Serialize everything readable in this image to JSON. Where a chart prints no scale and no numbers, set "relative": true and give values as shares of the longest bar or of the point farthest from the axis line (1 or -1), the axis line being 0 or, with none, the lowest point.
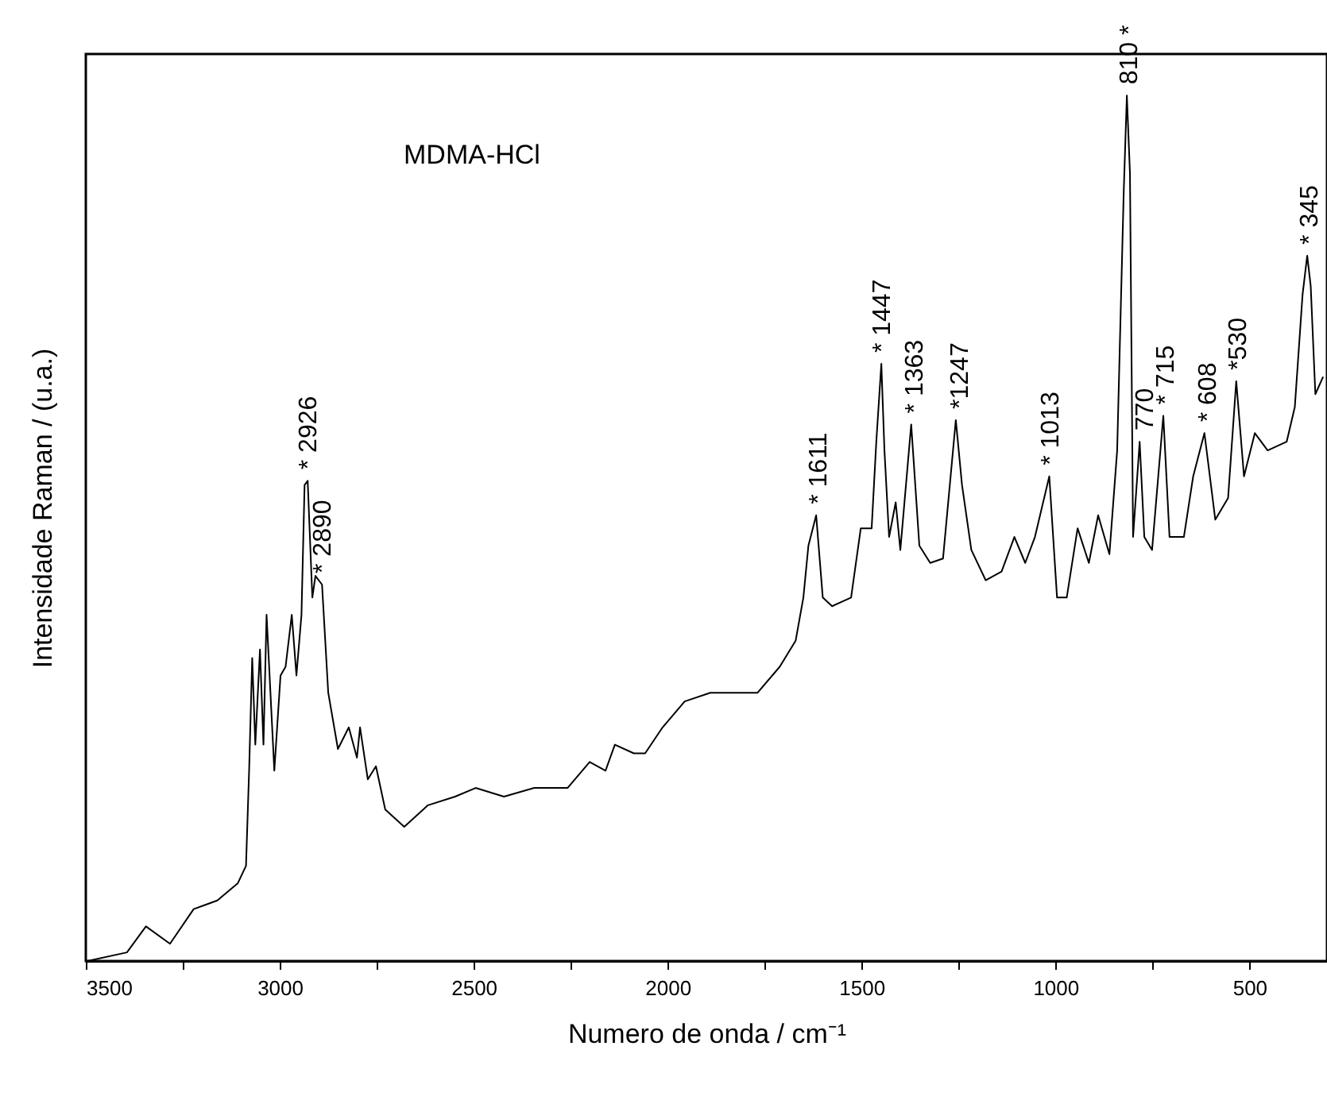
{
  "chart_data": {
    "type": "line",
    "xlabel": "Numero de onda / cm⁻¹",
    "ylabel": "Intensidade Raman / (u.a.)",
    "relative": true,
    "xlim": [
      3500,
      300
    ],
    "xticks": [
      3500,
      {
        "value": 3250,
        "label": null
      },
      3000,
      {
        "value": 2750,
        "label": null
      },
      2500,
      {
        "value": 2250,
        "label": null
      },
      2000,
      {
        "value": 1750,
        "label": null
      },
      1500,
      {
        "value": 1250,
        "label": null
      },
      1000,
      {
        "value": 750,
        "label": null
      },
      500
    ],
    "x": [
      3496,
      3394,
      3345,
      3283,
      3222,
      3161,
      3108,
      3087,
      3079,
      3071,
      3063,
      3051,
      3042,
      3034,
      3014,
      2998,
      2985,
      2969,
      2957,
      2944,
      2936,
      2928,
      2916,
      2908,
      2891,
      2875,
      2850,
      2822,
      2801,
      2793,
      2773,
      2752,
      2728,
      2679,
      2618,
      2548,
      2495,
      2422,
      2344,
      2258,
      2201,
      2160,
      2136,
      2087,
      2058,
      2013,
      1956,
      1890,
      1821,
      1768,
      1711,
      1670,
      1650,
      1637,
      1617,
      1600,
      1576,
      1527,
      1502,
      1474,
      1462,
      1449,
      1441,
      1429,
      1412,
      1400,
      1372,
      1351,
      1323,
      1290,
      1257,
      1241,
      1217,
      1180,
      1139,
      1106,
      1078,
      1053,
      1016,
      996,
      971,
      943,
      914,
      890,
      861,
      841,
      824,
      816,
      808,
      800,
      783,
      771,
      751,
      722,
      706,
      669,
      645,
      616,
      588,
      555,
      534,
      514,
      486,
      453,
      404,
      383,
      363,
      351,
      342,
      330,
      310
    ],
    "series": [
      {
        "color": "#000000",
        "values": [
          0,
          0.01,
          0.04,
          0.02,
          0.06,
          0.07,
          0.09,
          0.11,
          0.22,
          0.35,
          0.25,
          0.36,
          0.25,
          0.4,
          0.22,
          0.33,
          0.34,
          0.4,
          0.33,
          0.4,
          0.55,
          0.555,
          0.42,
          0.445,
          0.435,
          0.31,
          0.245,
          0.27,
          0.235,
          0.27,
          0.21,
          0.225,
          0.175,
          0.155,
          0.18,
          0.19,
          0.2,
          0.19,
          0.2,
          0.2,
          0.23,
          0.22,
          0.25,
          0.24,
          0.24,
          0.27,
          0.3,
          0.31,
          0.31,
          0.31,
          0.34,
          0.37,
          0.42,
          0.48,
          0.515,
          0.42,
          0.41,
          0.42,
          0.5,
          0.5,
          0.6,
          0.69,
          0.59,
          0.49,
          0.53,
          0.475,
          0.62,
          0.48,
          0.46,
          0.465,
          0.625,
          0.55,
          0.475,
          0.44,
          0.45,
          0.49,
          0.46,
          0.49,
          0.56,
          0.42,
          0.42,
          0.5,
          0.46,
          0.515,
          0.47,
          0.59,
          0.89,
          1.0,
          0.91,
          0.49,
          0.6,
          0.49,
          0.475,
          0.63,
          0.49,
          0.49,
          0.56,
          0.61,
          0.51,
          0.535,
          0.67,
          0.56,
          0.61,
          0.59,
          0.6,
          0.64,
          0.77,
          0.815,
          0.78,
          0.655,
          0.675
        ]
      }
    ],
    "annotations": [
      "MDMA-HCl",
      {
        "text": "* 2926",
        "x": 2926,
        "y": 0.555
      },
      {
        "text": "* 2890",
        "x": 2890,
        "y": 0.435
      },
      {
        "text": "* 1611",
        "x": 1611,
        "y": 0.515
      },
      {
        "text": "* 1447",
        "x": 1447,
        "y": 0.69
      },
      {
        "text": "* 1363",
        "x": 1363,
        "y": 0.62
      },
      {
        "text": "*1247",
        "x": 1247,
        "y": 0.625
      },
      {
        "text": "* 1013",
        "x": 1013,
        "y": 0.56
      },
      {
        "text": "810 *",
        "x": 810,
        "y": 1.0
      },
      {
        "text": "770",
        "x": 770,
        "y": 0.6
      },
      {
        "text": "* 715",
        "x": 715,
        "y": 0.63
      },
      {
        "text": "* 608",
        "x": 608,
        "y": 0.61
      },
      {
        "text": "*530",
        "x": 530,
        "y": 0.67
      },
      {
        "text": "* 345",
        "x": 345,
        "y": 0.815
      }
    ]
  }
}
